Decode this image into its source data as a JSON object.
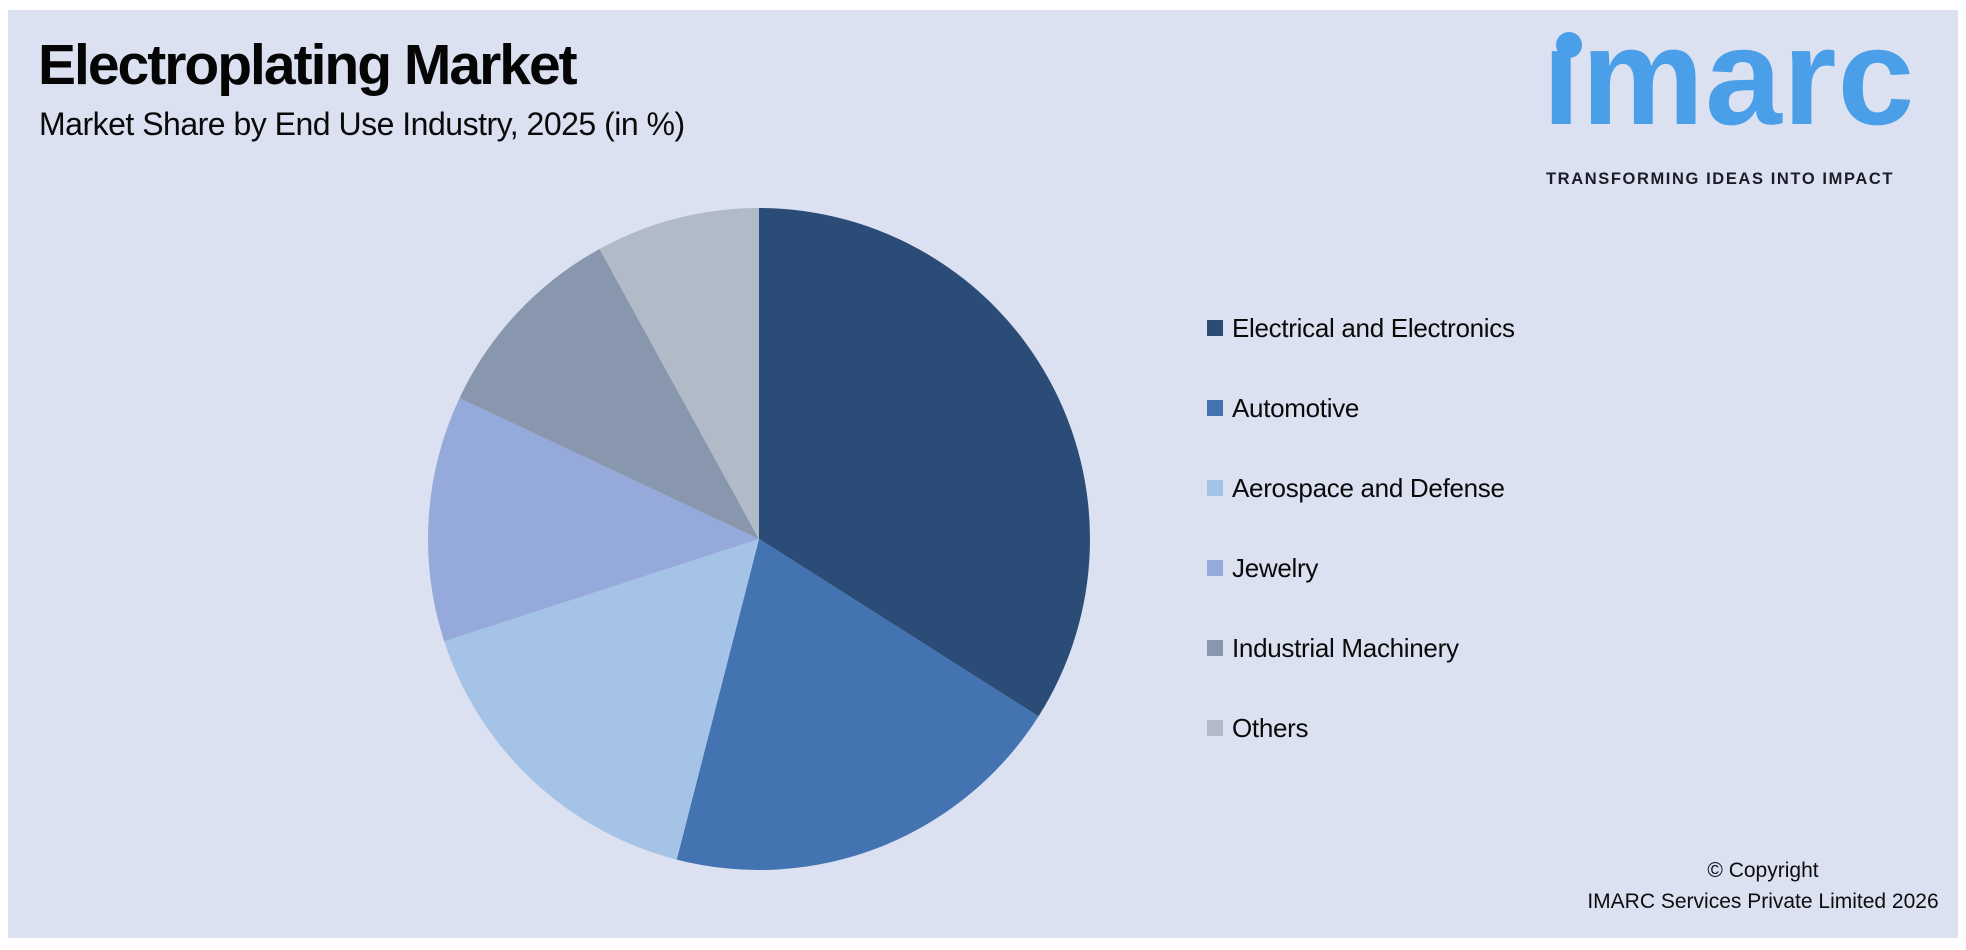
{
  "page": {
    "background_color": "#ffffff",
    "canvas_color": "#dbe1f1"
  },
  "header": {
    "title": "Electroplating Market",
    "subtitle": "Market Share by End Use Industry, 2025 (in %)"
  },
  "logo": {
    "wordmark": "imarc",
    "wordmark_display": "ımarc",
    "tagline": "TRANSFORMING IDEAS INTO IMPACT",
    "brand_color": "#4a9fe8",
    "tagline_color": "#1c1c27"
  },
  "chart_data": {
    "type": "pie",
    "title": "Electroplating Market",
    "subtitle": "Market Share by End Use Industry, 2025 (in %)",
    "unit": "%",
    "start_angle_deg": 0,
    "direction": "clockwise",
    "legend_position": "right",
    "data_labels_shown": false,
    "categories": [
      "Electrical and Electronics",
      "Automotive",
      "Aerospace and Defense",
      "Jewelry",
      "Industrial Machinery",
      "Others"
    ],
    "values": [
      34,
      20,
      16,
      12,
      10,
      8
    ],
    "colors": [
      "#2b4c77",
      "#4473b2",
      "#a5c3e6",
      "#95a9da",
      "#8997ae",
      "#b1bac7"
    ]
  },
  "legend": {
    "items": [
      {
        "label": "Electrical and Electronics",
        "color": "#2b4c77"
      },
      {
        "label": "Automotive",
        "color": "#4473b2"
      },
      {
        "label": "Aerospace and Defense",
        "color": "#a5c3e6"
      },
      {
        "label": "Jewelry",
        "color": "#95a9da"
      },
      {
        "label": "Industrial Machinery",
        "color": "#8997ae"
      },
      {
        "label": "Others",
        "color": "#b1bac7"
      }
    ]
  },
  "footer": {
    "copyright_line1": "© Copyright",
    "copyright_line2": "IMARC Services Private Limited 2026"
  }
}
